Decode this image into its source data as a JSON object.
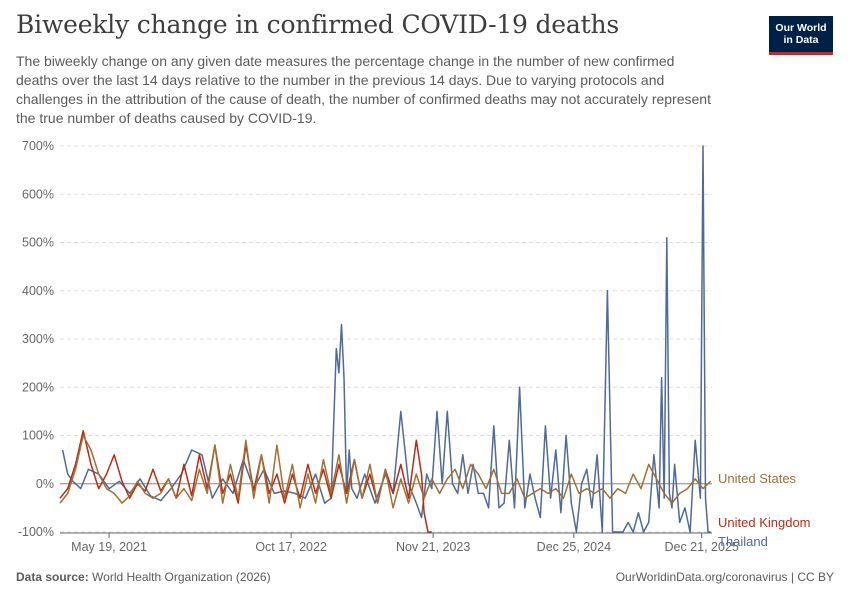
{
  "header": {
    "title": "Biweekly change in confirmed COVID-19 deaths",
    "subtitle": "The biweekly change on any given date measures the percentage change in the number of new confirmed deaths over the last 14 days relative to the number in the previous 14 days. Due to varying protocols and challenges in the attribution of the cause of death, the number of confirmed deaths may not accurately represent the true number of deaths caused by COVID-19."
  },
  "logo": {
    "line1": "Our World",
    "line2": "in Data"
  },
  "footer": {
    "source_label": "Data source:",
    "source_text": "World Health Organization (2026)",
    "credit": "OurWorldinData.org/coronavirus | CC BY"
  },
  "colors": {
    "united_states": "#a2702f",
    "united_kingdom": "#c0290f",
    "thailand": "#4c6a9c",
    "grid": "#dddddd",
    "axis": "#666666"
  },
  "chart_data": {
    "type": "line",
    "title": "Biweekly change in confirmed COVID-19 deaths",
    "xlabel": "",
    "ylabel": "",
    "ylim": [
      -100,
      700
    ],
    "yticks": [
      -100,
      0,
      100,
      200,
      300,
      400,
      500,
      600,
      700
    ],
    "ytick_labels": [
      "-100%",
      "0%",
      "100%",
      "200%",
      "300%",
      "400%",
      "500%",
      "600%",
      "700%"
    ],
    "xlim": [
      2021.0,
      2026.05
    ],
    "xticks": [
      2021.38,
      2022.79,
      2023.89,
      2024.98,
      2025.97
    ],
    "xtick_labels": [
      "May 19, 2021",
      "Oct 17, 2022",
      "Nov 21, 2023",
      "Dec 25, 2024",
      "Dec 21, 2025"
    ],
    "grid": true,
    "series": [
      {
        "name": "Thailand",
        "label": "Thailand",
        "color": "#4c6a9c",
        "x": [
          2021.02,
          2021.06,
          2021.1,
          2021.16,
          2021.22,
          2021.3,
          2021.38,
          2021.46,
          2021.54,
          2021.62,
          2021.7,
          2021.78,
          2021.86,
          2021.94,
          2022.02,
          2022.1,
          2022.18,
          2022.26,
          2022.34,
          2022.42,
          2022.5,
          2022.58,
          2022.66,
          2022.74,
          2022.82,
          2022.9,
          2022.98,
          2023.05,
          2023.1,
          2023.14,
          2023.16,
          2023.18,
          2023.2,
          2023.22,
          2023.24,
          2023.26,
          2023.3,
          2023.36,
          2023.44,
          2023.52,
          2023.58,
          2023.64,
          2023.7,
          2023.76,
          2023.8,
          2023.84,
          2023.88,
          2023.92,
          2023.96,
          2024.0,
          2024.04,
          2024.08,
          2024.12,
          2024.16,
          2024.2,
          2024.24,
          2024.28,
          2024.32,
          2024.36,
          2024.4,
          2024.44,
          2024.48,
          2024.52,
          2024.56,
          2024.6,
          2024.64,
          2024.68,
          2024.72,
          2024.76,
          2024.8,
          2024.84,
          2024.88,
          2024.92,
          2024.96,
          2025.0,
          2025.04,
          2025.08,
          2025.12,
          2025.16,
          2025.2,
          2025.24,
          2025.28,
          2025.32,
          2025.36,
          2025.4,
          2025.44,
          2025.48,
          2025.52,
          2025.56,
          2025.6,
          2025.64,
          2025.66,
          2025.68,
          2025.7,
          2025.72,
          2025.74,
          2025.76,
          2025.8,
          2025.84,
          2025.88,
          2025.92,
          2025.96,
          2025.98,
          2026.0,
          2026.02,
          2026.04
        ],
        "y": [
          70,
          20,
          5,
          -10,
          30,
          20,
          -10,
          5,
          -20,
          10,
          -25,
          -35,
          -10,
          20,
          70,
          60,
          -30,
          10,
          -20,
          50,
          -10,
          30,
          -20,
          -15,
          -20,
          -30,
          20,
          -40,
          -30,
          280,
          230,
          330,
          220,
          -20,
          70,
          -10,
          -30,
          20,
          -40,
          20,
          -20,
          150,
          0,
          -40,
          -70,
          20,
          -10,
          150,
          0,
          150,
          0,
          -20,
          60,
          -20,
          40,
          -20,
          -20,
          -50,
          120,
          -50,
          -40,
          90,
          -50,
          200,
          -50,
          20,
          -30,
          -70,
          120,
          -30,
          70,
          -60,
          100,
          -40,
          -100,
          0,
          30,
          -50,
          60,
          -100,
          400,
          -100,
          -100,
          -100,
          -80,
          -100,
          -60,
          -100,
          -80,
          60,
          -50,
          220,
          -30,
          510,
          -20,
          -50,
          40,
          -80,
          -50,
          -100,
          90,
          -30,
          700,
          -30,
          -100,
          -100
        ]
      },
      {
        "name": "United Kingdom",
        "label": "United Kingdom",
        "color": "#c0290f",
        "x": [
          2021.0,
          2021.06,
          2021.12,
          2021.18,
          2021.24,
          2021.3,
          2021.36,
          2021.42,
          2021.48,
          2021.54,
          2021.6,
          2021.66,
          2021.72,
          2021.78,
          2021.84,
          2021.9,
          2021.96,
          2022.02,
          2022.08,
          2022.14,
          2022.2,
          2022.26,
          2022.32,
          2022.38,
          2022.44,
          2022.5,
          2022.56,
          2022.62,
          2022.68,
          2022.74,
          2022.8,
          2022.86,
          2022.92,
          2022.98,
          2023.04,
          2023.1,
          2023.16,
          2023.22,
          2023.28,
          2023.34,
          2023.4,
          2023.46,
          2023.52,
          2023.58,
          2023.64,
          2023.7,
          2023.76,
          2023.8,
          2023.82,
          2023.85,
          2023.88
        ],
        "y": [
          -30,
          -10,
          40,
          110,
          40,
          -10,
          20,
          60,
          5,
          -30,
          0,
          -15,
          30,
          -15,
          10,
          -30,
          40,
          -25,
          60,
          -10,
          80,
          -20,
          20,
          -40,
          80,
          -15,
          60,
          -20,
          20,
          -40,
          20,
          -30,
          40,
          -20,
          30,
          -30,
          40,
          -20,
          50,
          -30,
          20,
          -40,
          30,
          -20,
          40,
          -30,
          90,
          20,
          -60,
          -100,
          -100
        ]
      },
      {
        "name": "United States",
        "label": "United States",
        "color": "#a2702f",
        "x": [
          2021.0,
          2021.06,
          2021.12,
          2021.18,
          2021.24,
          2021.3,
          2021.36,
          2021.42,
          2021.48,
          2021.54,
          2021.6,
          2021.66,
          2021.72,
          2021.78,
          2021.84,
          2021.9,
          2021.96,
          2022.02,
          2022.08,
          2022.14,
          2022.2,
          2022.26,
          2022.32,
          2022.38,
          2022.44,
          2022.5,
          2022.56,
          2022.62,
          2022.68,
          2022.74,
          2022.8,
          2022.86,
          2022.92,
          2022.98,
          2023.04,
          2023.1,
          2023.16,
          2023.22,
          2023.28,
          2023.34,
          2023.4,
          2023.46,
          2023.52,
          2023.58,
          2023.64,
          2023.7,
          2023.76,
          2023.82,
          2023.88,
          2023.94,
          2024.0,
          2024.06,
          2024.12,
          2024.18,
          2024.24,
          2024.3,
          2024.36,
          2024.42,
          2024.48,
          2024.54,
          2024.6,
          2024.66,
          2024.72,
          2024.78,
          2024.84,
          2024.9,
          2024.96,
          2025.02,
          2025.08,
          2025.14,
          2025.2,
          2025.26,
          2025.32,
          2025.38,
          2025.44,
          2025.5,
          2025.56,
          2025.62,
          2025.68,
          2025.74,
          2025.8,
          2025.86,
          2025.92,
          2025.98,
          2026.04
        ],
        "y": [
          -40,
          -20,
          30,
          100,
          70,
          20,
          -10,
          -20,
          -40,
          -25,
          5,
          -20,
          -30,
          -20,
          10,
          -30,
          -10,
          -35,
          30,
          -20,
          80,
          -40,
          40,
          -30,
          90,
          -30,
          60,
          -40,
          80,
          -30,
          40,
          -50,
          20,
          -40,
          50,
          -20,
          60,
          -40,
          50,
          -30,
          40,
          -40,
          30,
          -50,
          10,
          -40,
          20,
          -30,
          10,
          -20,
          10,
          30,
          -10,
          40,
          20,
          -10,
          30,
          -20,
          -20,
          10,
          -30,
          -20,
          -10,
          -20,
          -10,
          -30,
          20,
          -20,
          -10,
          -20,
          -10,
          -30,
          -10,
          -20,
          20,
          -10,
          40,
          10,
          -20,
          -40,
          -20,
          -10,
          10,
          -10,
          5
        ]
      }
    ]
  }
}
